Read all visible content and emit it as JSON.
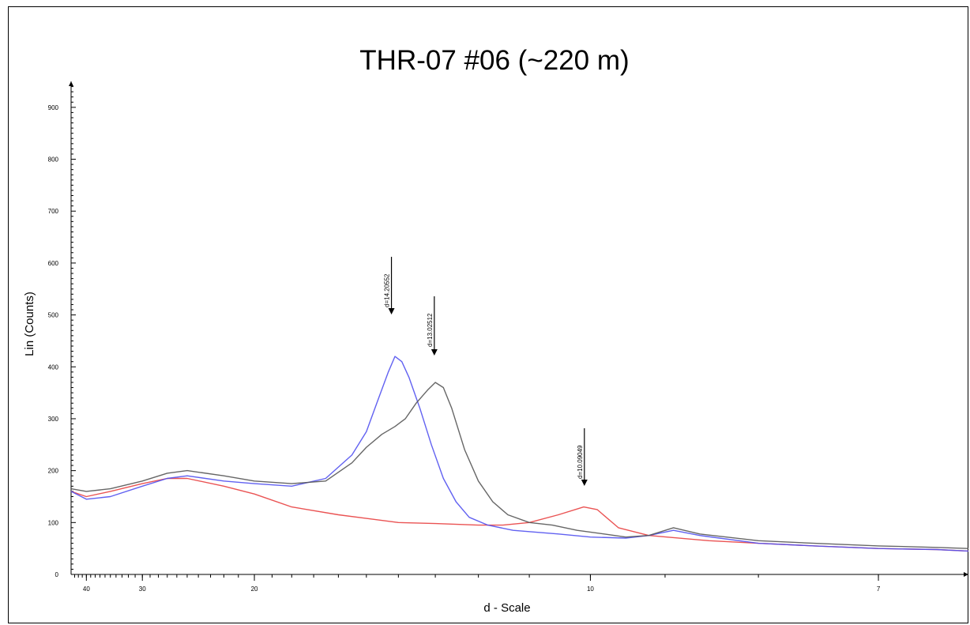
{
  "chart_data": {
    "type": "line",
    "title": "THR-07 #06 (~220 m)",
    "xlabel": "d - Scale",
    "ylabel": "Lin (Counts)",
    "x_scale": "reciprocal",
    "xlim": [
      44,
      6.4
    ],
    "ylim": [
      0,
      950
    ],
    "y_ticks": [
      0,
      100,
      200,
      300,
      400,
      500,
      600,
      700,
      800,
      900
    ],
    "x_ticks": [
      40,
      30,
      20,
      10,
      7
    ],
    "grid": false,
    "series": [
      {
        "color": "#e84040",
        "points": [
          [
            44,
            160
          ],
          [
            40,
            150
          ],
          [
            35,
            160
          ],
          [
            30,
            175
          ],
          [
            27,
            185
          ],
          [
            25,
            185
          ],
          [
            22,
            170
          ],
          [
            20,
            155
          ],
          [
            18,
            130
          ],
          [
            16,
            115
          ],
          [
            15,
            108
          ],
          [
            14,
            100
          ],
          [
            13,
            98
          ],
          [
            12,
            95
          ],
          [
            11.5,
            95
          ],
          [
            11,
            100
          ],
          [
            10.5,
            115
          ],
          [
            10.1,
            130
          ],
          [
            9.9,
            125
          ],
          [
            9.6,
            90
          ],
          [
            9.2,
            75
          ],
          [
            8.5,
            65
          ],
          [
            8,
            60
          ],
          [
            7.5,
            55
          ],
          [
            7,
            50
          ],
          [
            6.6,
            48
          ],
          [
            6.4,
            45
          ]
        ]
      },
      {
        "color": "#5050f0",
        "points": [
          [
            44,
            160
          ],
          [
            40,
            145
          ],
          [
            35,
            150
          ],
          [
            30,
            170
          ],
          [
            27,
            185
          ],
          [
            25,
            190
          ],
          [
            22,
            180
          ],
          [
            20,
            175
          ],
          [
            18,
            170
          ],
          [
            16.5,
            185
          ],
          [
            15.5,
            230
          ],
          [
            15,
            275
          ],
          [
            14.6,
            340
          ],
          [
            14.3,
            390
          ],
          [
            14.1,
            420
          ],
          [
            13.9,
            410
          ],
          [
            13.7,
            380
          ],
          [
            13.4,
            320
          ],
          [
            13.1,
            250
          ],
          [
            12.8,
            185
          ],
          [
            12.5,
            140
          ],
          [
            12.2,
            110
          ],
          [
            11.8,
            95
          ],
          [
            11.3,
            85
          ],
          [
            10.5,
            78
          ],
          [
            10,
            72
          ],
          [
            9.5,
            70
          ],
          [
            9.2,
            75
          ],
          [
            8.9,
            85
          ],
          [
            8.6,
            75
          ],
          [
            8,
            60
          ],
          [
            7.5,
            55
          ],
          [
            7,
            50
          ],
          [
            6.6,
            48
          ],
          [
            6.4,
            45
          ]
        ]
      },
      {
        "color": "#555555",
        "points": [
          [
            44,
            165
          ],
          [
            40,
            160
          ],
          [
            35,
            165
          ],
          [
            30,
            180
          ],
          [
            27,
            195
          ],
          [
            25,
            200
          ],
          [
            22,
            190
          ],
          [
            20,
            180
          ],
          [
            18,
            175
          ],
          [
            16.5,
            180
          ],
          [
            15.5,
            215
          ],
          [
            15,
            245
          ],
          [
            14.5,
            270
          ],
          [
            14.1,
            285
          ],
          [
            13.8,
            300
          ],
          [
            13.5,
            330
          ],
          [
            13.2,
            355
          ],
          [
            13,
            370
          ],
          [
            12.8,
            360
          ],
          [
            12.6,
            320
          ],
          [
            12.3,
            240
          ],
          [
            12,
            180
          ],
          [
            11.7,
            140
          ],
          [
            11.4,
            115
          ],
          [
            11,
            100
          ],
          [
            10.6,
            95
          ],
          [
            10.2,
            85
          ],
          [
            9.8,
            78
          ],
          [
            9.5,
            72
          ],
          [
            9.2,
            75
          ],
          [
            8.9,
            90
          ],
          [
            8.6,
            78
          ],
          [
            8,
            65
          ],
          [
            7.5,
            60
          ],
          [
            7,
            55
          ],
          [
            6.6,
            52
          ],
          [
            6.4,
            50
          ]
        ]
      }
    ],
    "annotations": [
      {
        "label": "d=14.20552",
        "d": 14.20552
      },
      {
        "label": "d=13.02512",
        "d": 13.02512
      },
      {
        "label": "d=10.09049",
        "d": 10.09049
      }
    ]
  }
}
